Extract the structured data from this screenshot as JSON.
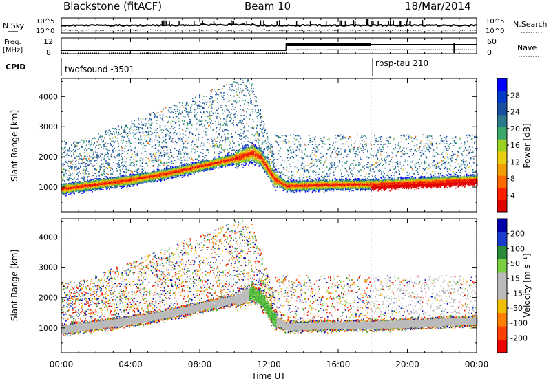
{
  "header": {
    "site": "Blackstone (fitACF)",
    "beam": "Beam 10",
    "date": "18/Mar/2014"
  },
  "time_axis": {
    "label": "Time UT",
    "ticks": [
      "00:00",
      "04:00",
      "08:00",
      "12:00",
      "16:00",
      "20:00",
      "00:00"
    ],
    "range_hours": [
      0,
      24
    ]
  },
  "noise_panel": {
    "left_label": "N.Sky",
    "right_label": "N.Search",
    "ticks": [
      "10^5",
      "10^0"
    ]
  },
  "freq_panel": {
    "left_label_1": "Freq.",
    "left_label_2": "[MHz]",
    "left_ticks": [
      "12",
      "8"
    ],
    "right_label": "Nave",
    "right_ticks": [
      "60",
      "0"
    ]
  },
  "cpid": {
    "label": "CPID",
    "programs": [
      {
        "name": "twofsound -3501",
        "start_hour": 0
      },
      {
        "name": "rbsp-tau 210",
        "start_hour": 17.9
      }
    ]
  },
  "chart_data": [
    {
      "type": "heatmap",
      "title": "",
      "xlabel": "Time UT",
      "ylabel": "Slant Range [km]",
      "xlim": [
        0,
        24
      ],
      "ylim": [
        180,
        4600
      ],
      "yticks": [
        1000,
        2000,
        3000,
        4000
      ],
      "colorbar": {
        "label": "Power [dB]",
        "ticks": [
          "28",
          "24",
          "20",
          "16",
          "12",
          "8",
          "4"
        ],
        "range": [
          0,
          30
        ],
        "colors": [
          "#0000ff",
          "#0038c8",
          "#1a4fa0",
          "#2a7a8a",
          "#3aa86a",
          "#9ad020",
          "#e8d010",
          "#f0a000",
          "#ff6a00",
          "#ff2000",
          "#e00000"
        ]
      },
      "bands": [
        {
          "desc": "ground scatter trace",
          "points": [
            [
              0,
              950
            ],
            [
              2,
              1100
            ],
            [
              4,
              1250
            ],
            [
              6,
              1450
            ],
            [
              8,
              1700
            ],
            [
              10,
              1950
            ],
            [
              11,
              2150
            ],
            [
              11.5,
              2000
            ],
            [
              12.3,
              1300
            ],
            [
              13,
              1050
            ],
            [
              16,
              1100
            ],
            [
              18,
              1100
            ],
            [
              20,
              1150
            ],
            [
              24,
              1250
            ]
          ]
        },
        {
          "desc": "ionospheric scatter",
          "points": [
            [
              0,
              1800
            ],
            [
              4,
              2600
            ],
            [
              8,
              3000
            ],
            [
              10.5,
              3600
            ]
          ]
        }
      ]
    },
    {
      "type": "heatmap",
      "title": "",
      "xlabel": "Time UT",
      "ylabel": "Slant Range [km]",
      "xlim": [
        0,
        24
      ],
      "ylim": [
        180,
        4600
      ],
      "yticks": [
        1000,
        2000,
        3000,
        4000
      ],
      "colorbar": {
        "label": "Velocity [m s⁻¹]",
        "ticks": [
          "200",
          "100",
          "50",
          "15",
          "-15",
          "-50",
          "-100",
          "-200"
        ],
        "range": [
          -250,
          250
        ],
        "colors": [
          "#0000aa",
          "#1a3ccc",
          "#2a8a3a",
          "#7ad040",
          "#bbbbbb",
          "#bbbbbb",
          "#f0c000",
          "#ff8000",
          "#ff4000",
          "#ee0000"
        ]
      }
    }
  ]
}
